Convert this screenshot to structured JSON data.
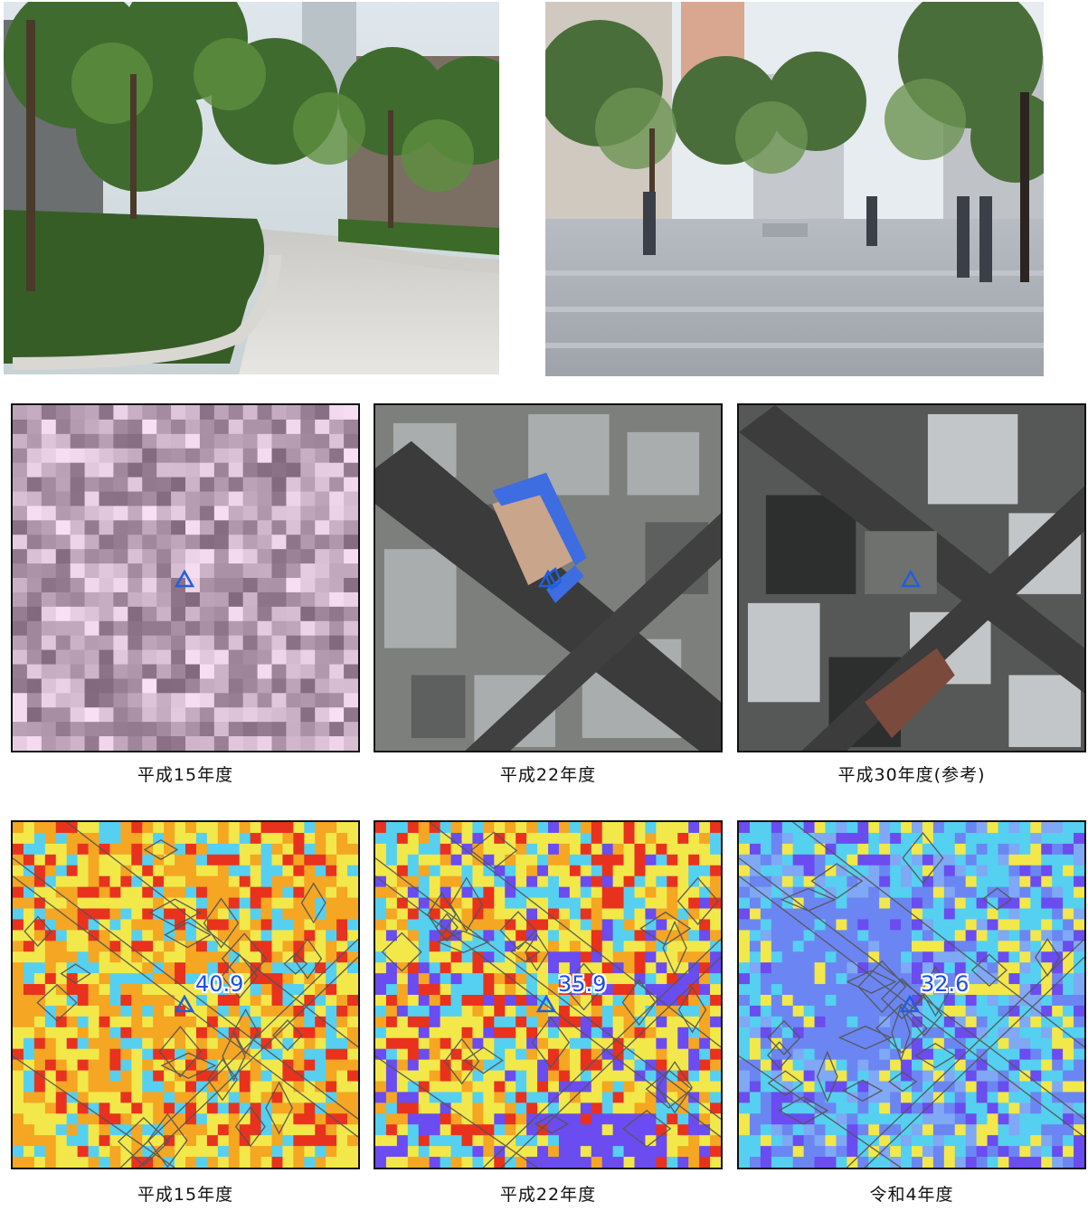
{
  "photos": [
    {
      "id": "photo-plaza-greenery"
    },
    {
      "id": "photo-street-pedestrians"
    }
  ],
  "aerial_row": [
    {
      "caption": "平成15年度",
      "style": "lowres"
    },
    {
      "caption": "平成22年度",
      "style": "aerial-old"
    },
    {
      "caption": "平成30年度(参考)",
      "style": "aerial-new"
    }
  ],
  "thermal_row": [
    {
      "caption": "平成15年度",
      "temperature": "40.9",
      "temperature_value": 40.9
    },
    {
      "caption": "平成22年度",
      "temperature": "35.9",
      "temperature_value": 35.9
    },
    {
      "caption": "令和4年度",
      "temperature": "32.6",
      "temperature_value": 32.6
    }
  ],
  "marker": {
    "shape": "triangle",
    "color": "#1f5fe0"
  },
  "colors": {
    "thermal_hot": "#e8321e",
    "thermal_warm": "#f5a623",
    "thermal_mild": "#f2e84a",
    "thermal_cool": "#55d0f0",
    "thermal_cold": "#6a4cf0",
    "building_outline": "#555555"
  }
}
